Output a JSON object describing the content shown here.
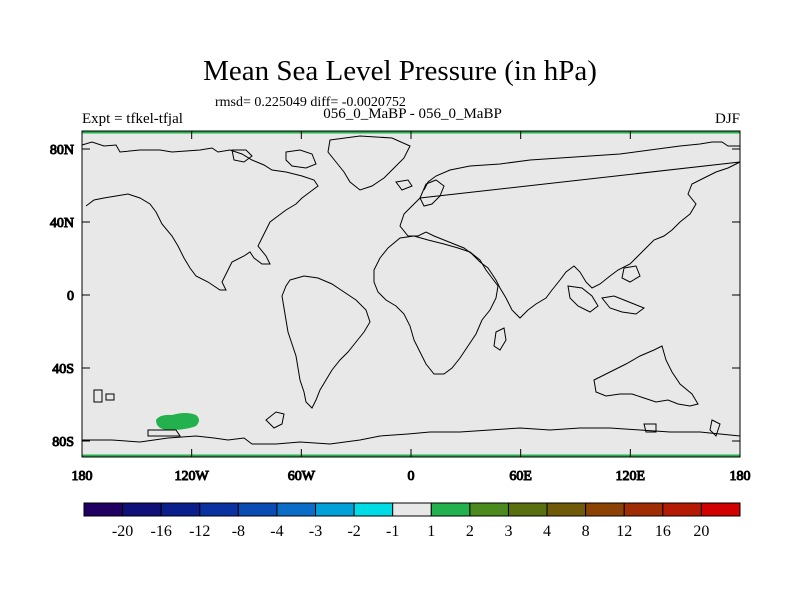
{
  "title": "Mean Sea Level Pressure (in hPa)",
  "subtitle": "rmsd= 0.225049 diff= -0.0020752",
  "left_label": "Expt = tfkel-tfjal",
  "center_label": "056_0_MaBP - 056_0_MaBP",
  "right_label": "DJF",
  "colors": {
    "background_field": "#e8e8e8",
    "coastline": "#000000",
    "anomaly_patch": "#22b14c"
  },
  "y_ticks": [
    "80N",
    "40N",
    "0",
    "40S",
    "80S"
  ],
  "x_ticks": [
    "180",
    "120W",
    "60W",
    "0",
    "60E",
    "120E",
    "180"
  ],
  "colorbar": {
    "labels": [
      "-20",
      "-16",
      "-12",
      "-8",
      "-4",
      "-3",
      "-2",
      "-1",
      "1",
      "2",
      "3",
      "4",
      "8",
      "12",
      "16",
      "20"
    ],
    "colors": [
      "#200060",
      "#10107a",
      "#0a1e8c",
      "#0a32a0",
      "#0a4cb4",
      "#0a6ec8",
      "#00a0d8",
      "#00dce6",
      "#e8e8e8",
      "#22b14c",
      "#4a8a1e",
      "#5a7010",
      "#6e5a08",
      "#8c4204",
      "#a02c04",
      "#b41a04",
      "#d20000"
    ]
  }
}
